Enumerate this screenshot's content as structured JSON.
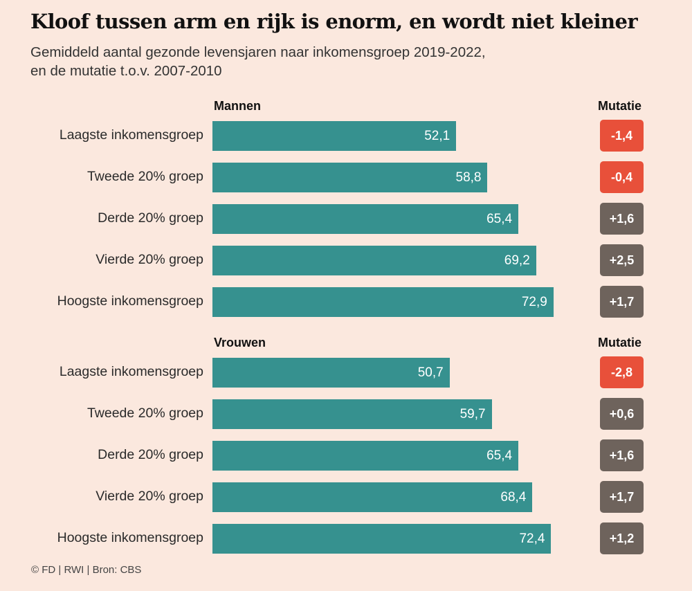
{
  "title": "Kloof tussen arm en rijk is enorm, en wordt niet kleiner",
  "subtitle_line1": "Gemiddeld aantal gezonde levensjaren naar inkomensgroep 2019-2022,",
  "subtitle_line2": "en de mutatie t.o.v. 2007-2010",
  "footer": "© FD | RWI | Bron: CBS",
  "colors": {
    "bar": "#36918f",
    "negative": "#e8503a",
    "positive": "#6e635c",
    "background": "#fbe8de"
  },
  "chart_data": {
    "type": "bar",
    "orientation": "horizontal",
    "xlim": [
      0,
      100
    ],
    "categories": [
      "Laagste inkomensgroep",
      "Tweede 20% groep",
      "Derde 20% groep",
      "Vierde 20% groep",
      "Hoogste inkomensgroep"
    ],
    "mutation_header": "Mutatie",
    "groups": [
      {
        "name": "Mannen",
        "values": [
          52.1,
          58.8,
          65.4,
          69.2,
          72.9
        ],
        "labels": [
          "52,1",
          "58,8",
          "65,4",
          "69,2",
          "72,9"
        ],
        "mutations": [
          -1.4,
          -0.4,
          1.6,
          2.5,
          1.7
        ],
        "mutation_labels": [
          "-1,4",
          "-0,4",
          "+1,6",
          "+2,5",
          "+1,7"
        ]
      },
      {
        "name": "Vrouwen",
        "values": [
          50.7,
          59.7,
          65.4,
          68.4,
          72.4
        ],
        "labels": [
          "50,7",
          "59,7",
          "65,4",
          "68,4",
          "72,4"
        ],
        "mutations": [
          -2.8,
          0.6,
          1.6,
          1.7,
          1.2
        ],
        "mutation_labels": [
          "-2,8",
          "+0,6",
          "+1,6",
          "+1,7",
          "+1,2"
        ]
      }
    ]
  }
}
